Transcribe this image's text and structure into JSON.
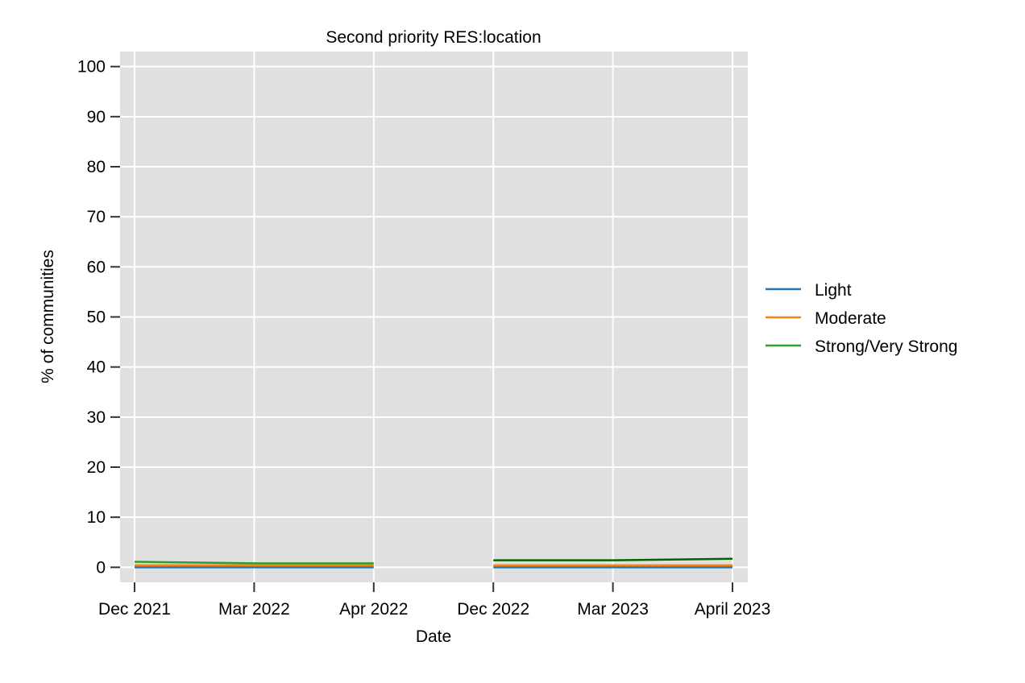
{
  "chart_data": {
    "type": "line",
    "title": "Second priority RES:location",
    "xlabel": "Date",
    "ylabel": "% of communities",
    "categories": [
      "Dec 2021",
      "Mar 2022",
      "Apr 2022",
      "Dec 2022",
      "Mar 2023",
      "April 2023"
    ],
    "ylim": [
      -3,
      103
    ],
    "yticks": [
      0,
      10,
      20,
      30,
      40,
      50,
      60,
      70,
      80,
      90,
      100
    ],
    "grid": true,
    "legend_position": "right",
    "segments": [
      [
        0,
        1,
        2
      ],
      [
        3,
        4,
        5
      ]
    ],
    "series": [
      {
        "name": "Light",
        "color": "#1f77b4",
        "values": [
          0.0,
          0.0,
          0.0,
          0.0,
          0.0,
          0.0
        ]
      },
      {
        "name": "Moderate",
        "color": "#ff7f0e",
        "values": [
          0.4,
          0.4,
          0.4,
          0.4,
          0.4,
          0.4
        ]
      },
      {
        "name": "Strong/Very Strong",
        "color": "#2ca02c",
        "values": [
          1.1,
          0.8,
          0.8,
          1.4,
          1.4,
          1.7
        ],
        "segment_colors": [
          "#2ca02c",
          "#006400"
        ]
      }
    ],
    "background_color": "#e0e0e0",
    "grid_color": "#ffffff"
  }
}
